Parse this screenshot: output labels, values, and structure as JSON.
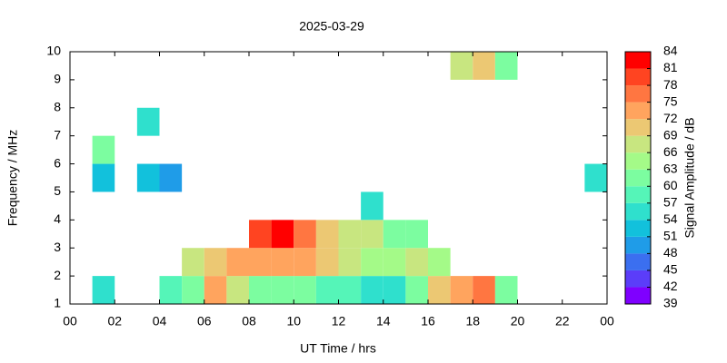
{
  "chart_data": {
    "type": "heatmap",
    "title": "2025-03-29",
    "xlabel": "UT Time / hrs",
    "ylabel": "Frequency / MHz",
    "colorbar_label": "Signal Amplitude / dB",
    "xlim": [
      0,
      24
    ],
    "ylim": [
      1,
      10
    ],
    "xticks": [
      {
        "value": 0,
        "label": "00"
      },
      {
        "value": 2,
        "label": "02"
      },
      {
        "value": 4,
        "label": "04"
      },
      {
        "value": 6,
        "label": "06"
      },
      {
        "value": 8,
        "label": "08"
      },
      10,
      12,
      14,
      16,
      18,
      20,
      22,
      {
        "value": 24,
        "label": "00"
      }
    ],
    "yticks": [
      1,
      2,
      3,
      4,
      5,
      6,
      7,
      8,
      9,
      10
    ],
    "xbins": [
      0,
      1,
      2,
      3,
      4,
      5,
      6,
      7,
      8,
      9,
      10,
      11,
      12,
      13,
      14,
      15,
      16,
      17,
      18,
      19,
      20,
      21,
      22,
      23,
      24
    ],
    "ybins": [
      1,
      2,
      3,
      4,
      5,
      6,
      7,
      8,
      9,
      10
    ],
    "zlim": [
      39,
      84
    ],
    "zticks": [
      39,
      42,
      45,
      48,
      51,
      54,
      57,
      60,
      63,
      66,
      69,
      72,
      75,
      78,
      81,
      84
    ],
    "colors": [
      "#7f00ff",
      "#5b3df9",
      "#3b6ff0",
      "#1f9ce8",
      "#12c1dc",
      "#2fe0cd",
      "#55f5b8",
      "#7cfda0",
      "#a4fa88",
      "#c8e680",
      "#ecc873",
      "#ffa45e",
      "#ff7641",
      "#ff4421",
      "#ff0000"
    ],
    "z": [
      [
        null,
        55,
        null,
        null,
        58,
        62,
        72,
        66,
        62,
        60,
        60,
        58,
        57,
        55,
        56,
        62,
        70,
        72,
        75,
        60,
        null,
        null,
        null,
        null
      ],
      [
        null,
        null,
        null,
        null,
        null,
        66,
        70,
        72,
        72,
        74,
        72,
        70,
        68,
        64,
        64,
        66,
        64,
        null,
        null,
        null,
        null,
        null,
        null,
        null
      ],
      [
        null,
        null,
        null,
        null,
        null,
        null,
        null,
        null,
        80,
        81,
        76,
        70,
        68,
        66,
        62,
        60,
        null,
        null,
        null,
        null,
        null,
        null,
        null,
        null
      ],
      [
        null,
        null,
        null,
        null,
        null,
        null,
        null,
        null,
        null,
        null,
        null,
        null,
        null,
        54,
        null,
        null,
        null,
        null,
        null,
        null,
        null,
        null,
        null,
        null
      ],
      [
        null,
        52,
        null,
        51,
        50,
        null,
        null,
        null,
        null,
        null,
        null,
        null,
        null,
        null,
        null,
        null,
        null,
        null,
        null,
        null,
        null,
        null,
        null,
        55
      ],
      [
        null,
        60,
        null,
        null,
        null,
        null,
        null,
        null,
        null,
        null,
        null,
        null,
        null,
        null,
        null,
        null,
        null,
        null,
        null,
        null,
        null,
        null,
        null,
        null
      ],
      [
        null,
        null,
        null,
        54,
        null,
        null,
        null,
        null,
        null,
        null,
        null,
        null,
        null,
        null,
        null,
        null,
        null,
        null,
        null,
        null,
        null,
        null,
        null,
        null
      ],
      [
        null,
        null,
        null,
        null,
        null,
        null,
        null,
        null,
        null,
        null,
        null,
        null,
        null,
        null,
        null,
        null,
        null,
        null,
        null,
        null,
        null,
        null,
        null,
        null
      ],
      [
        null,
        null,
        null,
        null,
        null,
        null,
        null,
        null,
        null,
        null,
        null,
        null,
        null,
        null,
        null,
        null,
        null,
        66,
        70,
        62,
        null,
        null,
        null,
        null
      ]
    ]
  }
}
